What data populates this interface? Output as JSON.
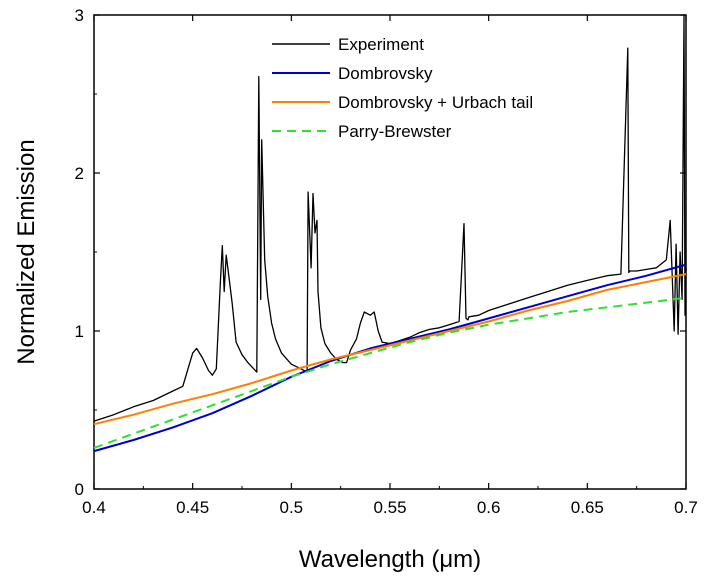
{
  "chart_data": {
    "type": "line",
    "xlabel": "Wavelength (μm)",
    "ylabel": "Normalized Emission",
    "xlim": [
      0.4,
      0.7
    ],
    "ylim": [
      0,
      3
    ],
    "xticks": [
      "0.4",
      "0.45",
      "0.5",
      "0.55",
      "0.6",
      "0.65",
      "0.7"
    ],
    "yticks": [
      "0",
      "1",
      "2",
      "3"
    ],
    "grid": false,
    "legend_position": "top-center",
    "series": [
      {
        "name": "Experiment",
        "color": "#000000",
        "dash": "solid",
        "x": [
          0.4,
          0.41,
          0.42,
          0.43,
          0.44,
          0.445,
          0.45,
          0.452,
          0.455,
          0.458,
          0.46,
          0.462,
          0.464,
          0.465,
          0.466,
          0.467,
          0.468,
          0.47,
          0.472,
          0.475,
          0.478,
          0.481,
          0.4825,
          0.4835,
          0.4845,
          0.485,
          0.486,
          0.4865,
          0.488,
          0.49,
          0.492,
          0.495,
          0.5,
          0.505,
          0.508,
          0.5085,
          0.51,
          0.511,
          0.512,
          0.513,
          0.5135,
          0.515,
          0.517,
          0.52,
          0.523,
          0.526,
          0.528,
          0.53,
          0.533,
          0.535,
          0.537,
          0.54,
          0.542,
          0.544,
          0.546,
          0.55,
          0.555,
          0.56,
          0.565,
          0.57,
          0.575,
          0.58,
          0.585,
          0.5875,
          0.5885,
          0.5895,
          0.59,
          0.595,
          0.6,
          0.61,
          0.62,
          0.63,
          0.64,
          0.65,
          0.66,
          0.667,
          0.6705,
          0.671,
          0.6715,
          0.675,
          0.68,
          0.685,
          0.69,
          0.692,
          0.694,
          0.695,
          0.696,
          0.697,
          0.698,
          0.699,
          0.6995,
          0.7
        ],
        "y": [
          0.43,
          0.47,
          0.52,
          0.56,
          0.62,
          0.65,
          0.86,
          0.89,
          0.83,
          0.75,
          0.72,
          0.76,
          1.3,
          1.54,
          1.25,
          1.48,
          1.38,
          1.18,
          0.93,
          0.85,
          0.8,
          0.76,
          0.74,
          2.61,
          1.2,
          2.21,
          1.7,
          1.45,
          1.22,
          1.05,
          0.95,
          0.86,
          0.79,
          0.76,
          0.74,
          1.88,
          1.4,
          1.87,
          1.62,
          1.7,
          1.25,
          1.02,
          0.92,
          0.86,
          0.82,
          0.8,
          0.8,
          0.88,
          0.95,
          1.05,
          1.12,
          1.1,
          1.12,
          1.0,
          0.93,
          0.92,
          0.94,
          0.96,
          0.99,
          1.01,
          1.02,
          1.04,
          1.06,
          1.68,
          1.08,
          1.07,
          1.09,
          1.1,
          1.13,
          1.17,
          1.21,
          1.25,
          1.29,
          1.32,
          1.35,
          1.36,
          2.79,
          1.37,
          1.38,
          1.38,
          1.39,
          1.4,
          1.45,
          1.7,
          1.0,
          1.55,
          0.98,
          1.5,
          1.2,
          3.0,
          1.1,
          1.4
        ]
      },
      {
        "name": "Dombrovsky",
        "color": "#0000cc",
        "dash": "solid",
        "x": [
          0.4,
          0.42,
          0.44,
          0.46,
          0.48,
          0.5,
          0.52,
          0.54,
          0.56,
          0.58,
          0.6,
          0.62,
          0.64,
          0.66,
          0.68,
          0.7
        ],
        "y": [
          0.24,
          0.31,
          0.39,
          0.48,
          0.59,
          0.71,
          0.81,
          0.89,
          0.95,
          1.01,
          1.08,
          1.15,
          1.22,
          1.29,
          1.35,
          1.42
        ]
      },
      {
        "name": "Dombrovsky + Urbach tail",
        "color": "#ff8000",
        "dash": "solid",
        "x": [
          0.4,
          0.42,
          0.44,
          0.46,
          0.48,
          0.5,
          0.52,
          0.54,
          0.56,
          0.58,
          0.6,
          0.62,
          0.64,
          0.66,
          0.68,
          0.7
        ],
        "y": [
          0.41,
          0.47,
          0.54,
          0.6,
          0.67,
          0.75,
          0.82,
          0.88,
          0.94,
          1.0,
          1.06,
          1.13,
          1.19,
          1.26,
          1.31,
          1.36
        ]
      },
      {
        "name": "Parry-Brewster",
        "color": "#33dd33",
        "dash": "dashed",
        "x": [
          0.4,
          0.42,
          0.44,
          0.46,
          0.48,
          0.5,
          0.52,
          0.54,
          0.56,
          0.58,
          0.6,
          0.62,
          0.64,
          0.66,
          0.68,
          0.7
        ],
        "y": [
          0.26,
          0.35,
          0.44,
          0.53,
          0.62,
          0.71,
          0.79,
          0.86,
          0.93,
          0.99,
          1.04,
          1.08,
          1.12,
          1.15,
          1.18,
          1.21
        ]
      }
    ]
  }
}
